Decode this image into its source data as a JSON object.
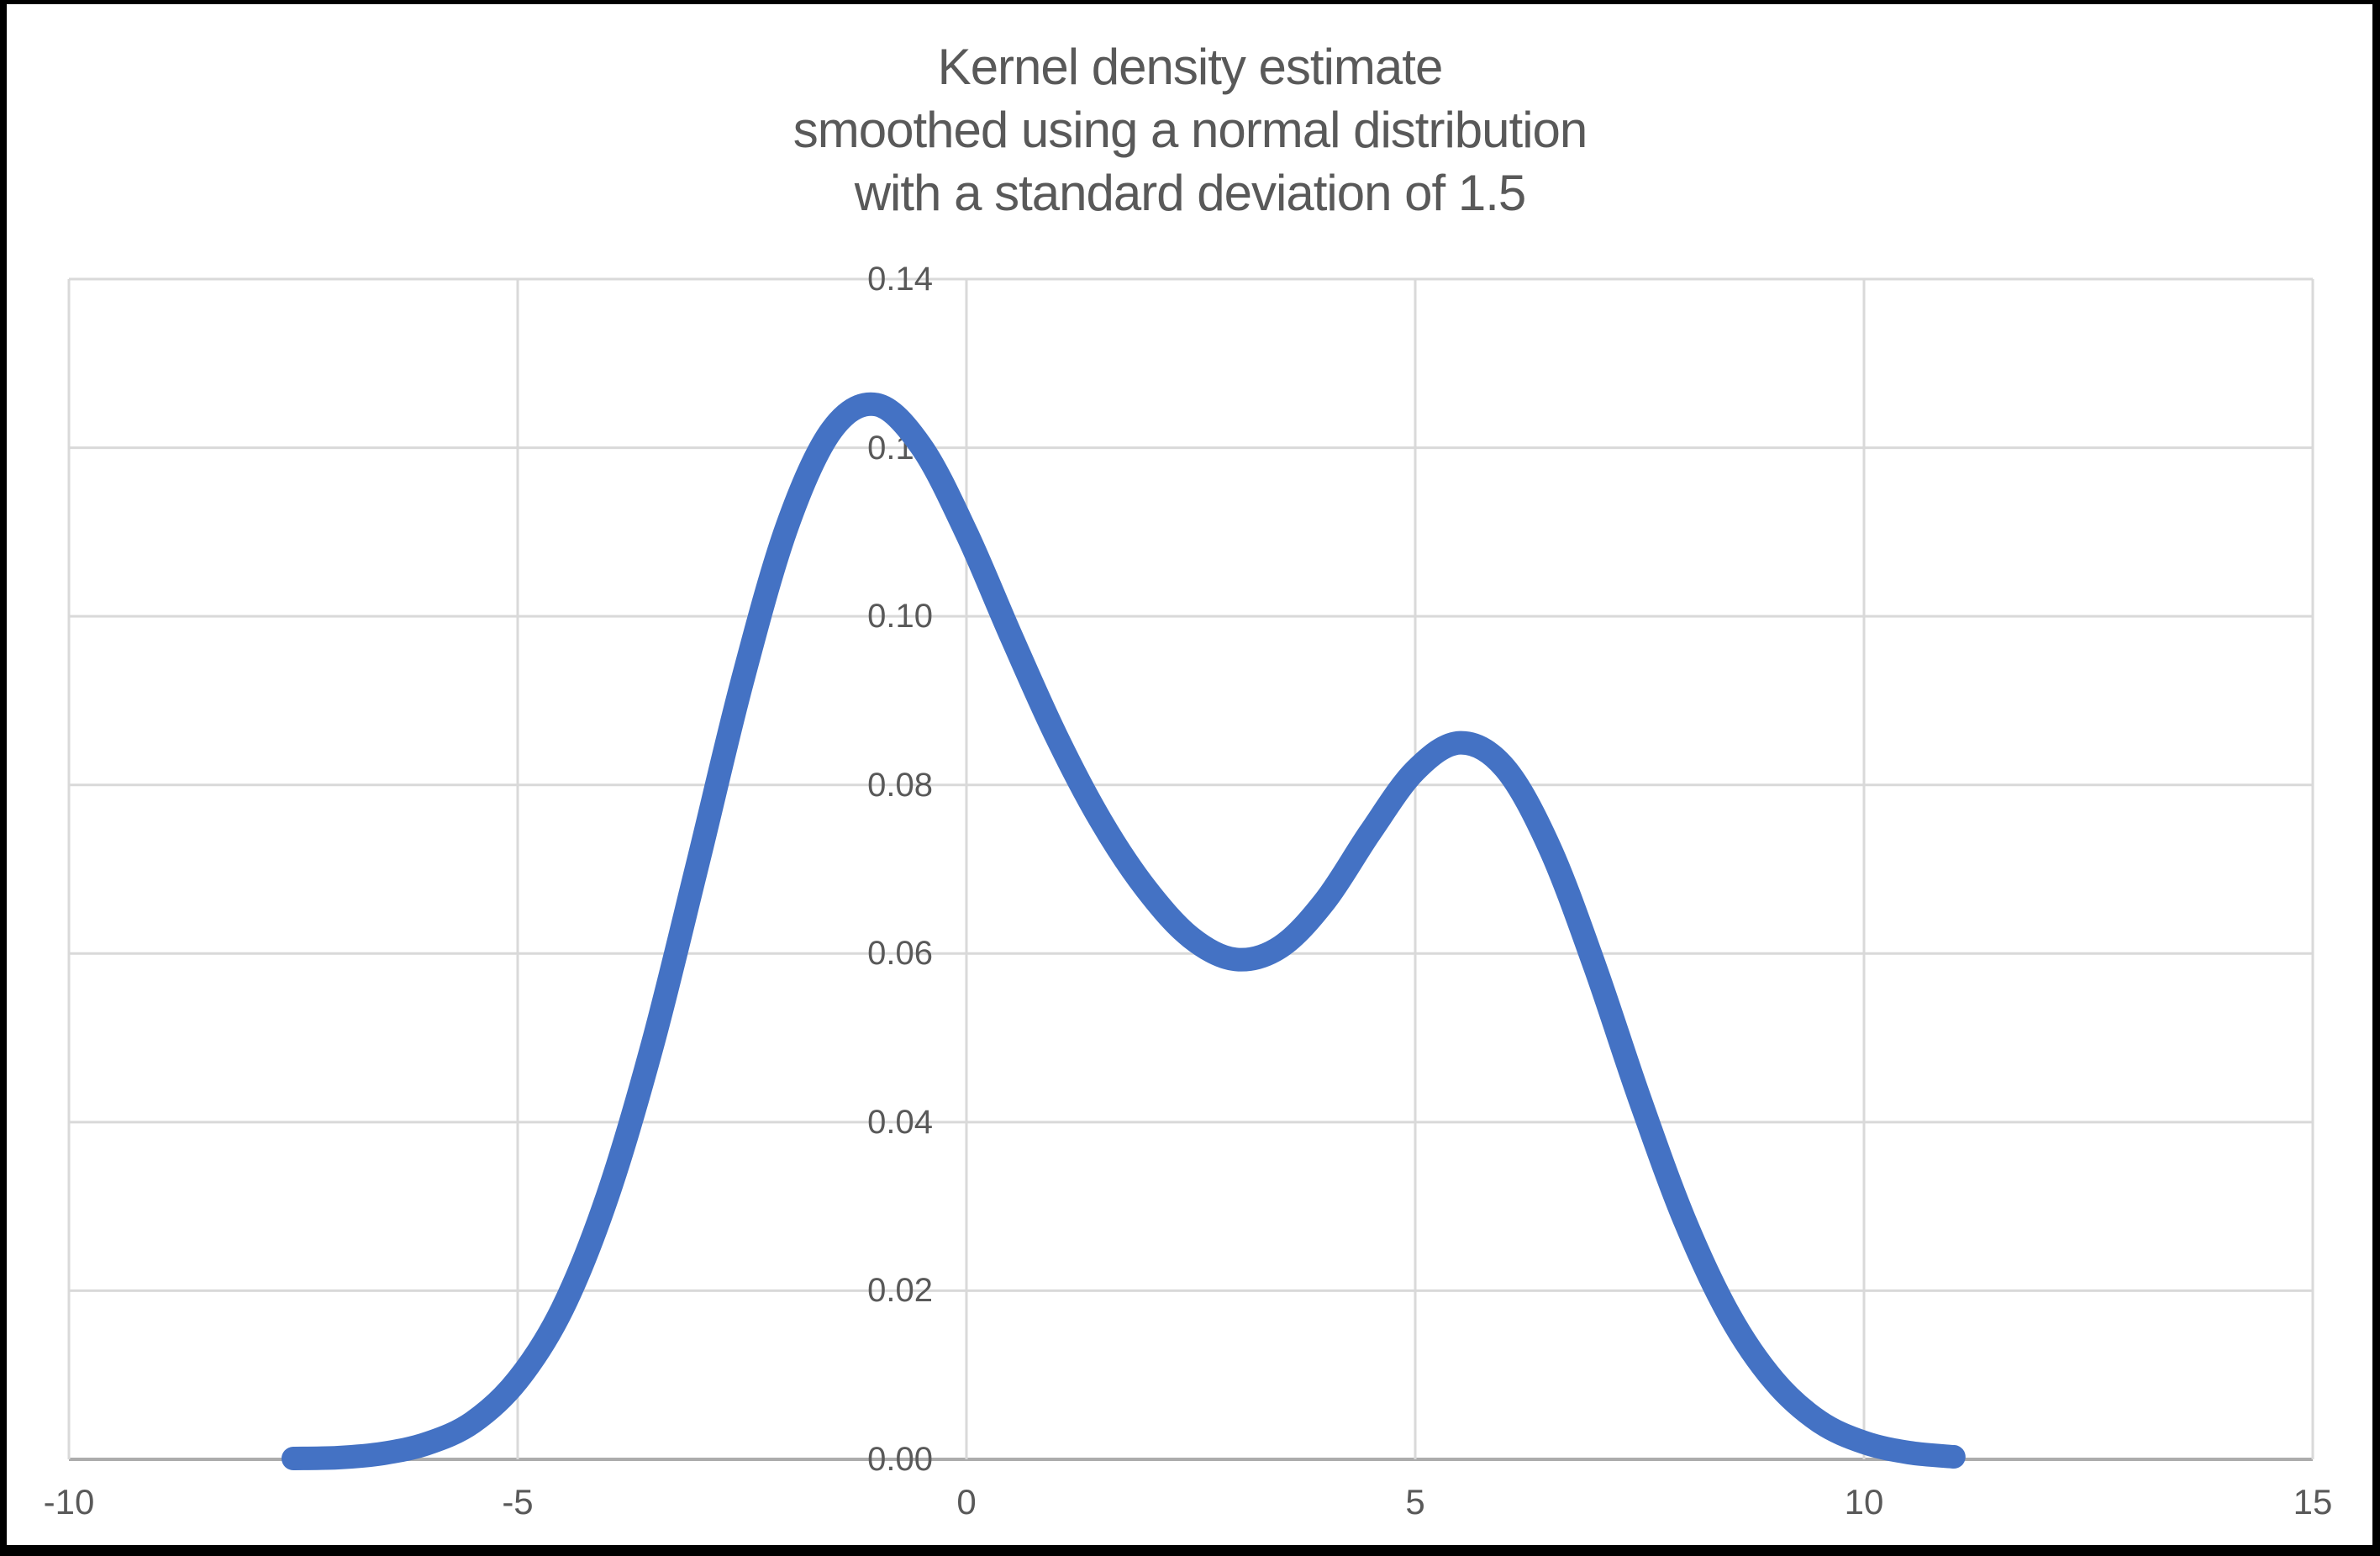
{
  "title": {
    "lines": [
      "Kernel density estimate",
      "smoothed using a normal distribution",
      "with a standard deviation of 1.5"
    ]
  },
  "chart_data": {
    "type": "line",
    "title": "Kernel density estimate smoothed using a normal distribution with a standard deviation of 1.5",
    "xlabel": "",
    "ylabel": "",
    "xlim": [
      -10,
      15
    ],
    "ylim": [
      0,
      0.14
    ],
    "grid": true,
    "legend_position": "none",
    "x_ticks": {
      "values": [
        -10,
        -5,
        0,
        5,
        10,
        15
      ],
      "labels": [
        "-10",
        "-5",
        "0",
        "5",
        "10",
        "15"
      ]
    },
    "y_ticks": {
      "values": [
        0,
        0.02,
        0.04,
        0.06,
        0.08,
        0.1,
        0.12,
        0.14
      ],
      "labels": [
        "0.00",
        "0.02",
        "0.04",
        "0.06",
        "0.08",
        "0.10",
        "0.12",
        "0.14"
      ]
    },
    "series": [
      {
        "name": "kernel-density-estimate",
        "color": "#4472C4",
        "x": [
          -7.5,
          -7.0,
          -6.5,
          -6.0,
          -5.5,
          -5.0,
          -4.5,
          -4.0,
          -3.5,
          -3.0,
          -2.5,
          -2.0,
          -1.5,
          -1.0,
          -0.5,
          0.0,
          0.5,
          1.0,
          1.5,
          2.0,
          2.5,
          3.0,
          3.5,
          4.0,
          4.5,
          5.0,
          5.5,
          6.0,
          6.5,
          7.0,
          7.5,
          8.0,
          8.5,
          9.0,
          9.5,
          10.0,
          10.5,
          11.0
        ],
        "y": [
          0.0001,
          0.0002,
          0.0007,
          0.0019,
          0.0044,
          0.0094,
          0.0179,
          0.0312,
          0.0491,
          0.0704,
          0.0922,
          0.1106,
          0.1221,
          0.1251,
          0.1201,
          0.1099,
          0.0976,
          0.0858,
          0.0757,
          0.0677,
          0.0619,
          0.0593,
          0.0608,
          0.0663,
          0.0744,
          0.0817,
          0.085,
          0.082,
          0.0725,
          0.0585,
          0.0428,
          0.0284,
          0.0171,
          0.0093,
          0.0045,
          0.002,
          0.0008,
          0.0003
        ]
      }
    ]
  },
  "colors": {
    "line": "#4472C4",
    "gridline": "#D9D9D9",
    "axis_line": "#ACACAC",
    "text": "#595959",
    "frame": "#000000",
    "background": "#FFFFFF"
  }
}
